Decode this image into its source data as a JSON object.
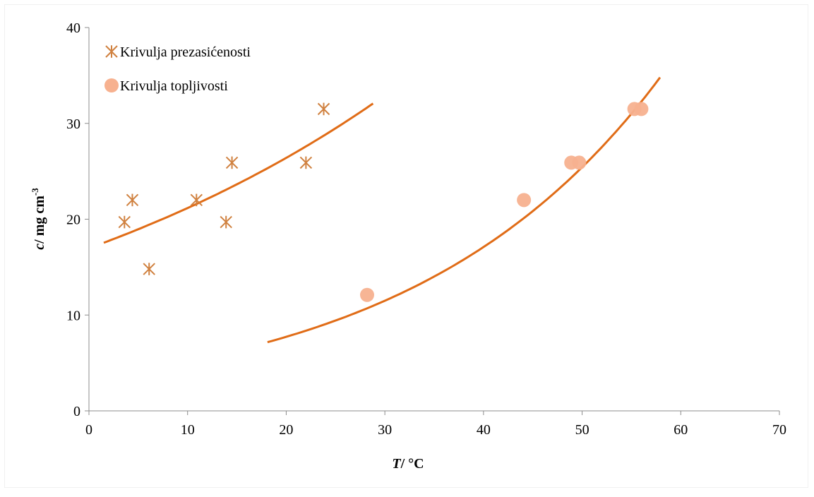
{
  "chart_data": {
    "type": "scatter",
    "title": "",
    "xlabel": {
      "italic": "T",
      "rest": "/ °C"
    },
    "ylabel": {
      "italic": "c",
      "rest": "/  mg cm",
      "sup": "-3"
    },
    "xlim": [
      0,
      70
    ],
    "ylim": [
      0,
      40
    ],
    "xticks": [
      0,
      10,
      20,
      30,
      40,
      50,
      60,
      70
    ],
    "yticks": [
      0,
      10,
      20,
      30,
      40
    ],
    "grid": false,
    "legend": "top-left",
    "series": [
      {
        "name": "Krivulja prezasićenosti",
        "marker": "asterisk",
        "color": "#d0813f",
        "points": [
          [
            3.6,
            19.7
          ],
          [
            4.4,
            22.0
          ],
          [
            6.1,
            14.8
          ],
          [
            10.9,
            22.0
          ],
          [
            13.9,
            19.7
          ],
          [
            14.5,
            25.9
          ],
          [
            22.0,
            25.9
          ],
          [
            23.8,
            31.5
          ]
        ],
        "trend": {
          "type": "exponential",
          "color": "#e06c17",
          "x_range": [
            1.5,
            28.8
          ],
          "a": 16.97,
          "b": 0.0221
        }
      },
      {
        "name": "Krivulja topljivosti",
        "marker": "circle",
        "color": "#f7b18f",
        "points": [
          [
            28.2,
            12.1
          ],
          [
            44.1,
            22.0
          ],
          [
            48.9,
            25.9
          ],
          [
            49.7,
            25.9
          ],
          [
            55.3,
            31.5
          ],
          [
            56.0,
            31.5
          ]
        ],
        "trend": {
          "type": "exponential",
          "color": "#e06c17",
          "x_range": [
            18.1,
            57.9
          ],
          "a": 3.493,
          "b": 0.0397
        }
      }
    ]
  }
}
